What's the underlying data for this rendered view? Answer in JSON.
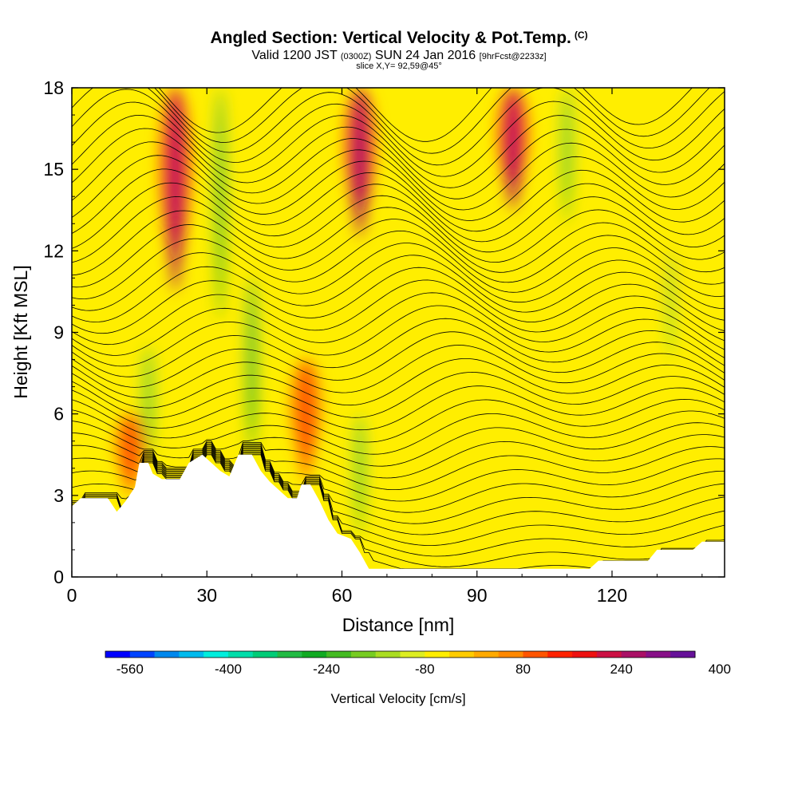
{
  "titles": {
    "main": "Angled Section: Vertical Velocity & Pot.Temp.",
    "main_suffix": "(C)",
    "valid_prefix": "Valid 1200 JST",
    "valid_zulu": "(0300Z)",
    "valid_date": "SUN 24 Jan 2016",
    "forecast": "[9hrFcst@2233z]",
    "slice": "slice X,Y= 92,59@45°"
  },
  "colorbar": {
    "label": "Vertical Velocity [cm/s]",
    "ticks": [
      "-560",
      "-400",
      "-240",
      "-80",
      "80",
      "240",
      "400"
    ],
    "colors": [
      "#0000ff",
      "#0044ff",
      "#0088ee",
      "#00bbee",
      "#00eedd",
      "#00ddaa",
      "#00cc77",
      "#22bb44",
      "#11aa22",
      "#44bb22",
      "#77cc22",
      "#aadd22",
      "#ddee22",
      "#ffee00",
      "#ffcc00",
      "#ffaa00",
      "#ff8800",
      "#ff5500",
      "#ff2200",
      "#ee1111",
      "#cc1144",
      "#aa1166",
      "#881188",
      "#661199"
    ]
  },
  "chart_data": {
    "type": "heatmap",
    "xlabel": "Distance [nm]",
    "ylabel": "Height [Kft MSL]",
    "xlim": [
      0,
      145
    ],
    "ylim": [
      0,
      18
    ],
    "x_ticks": [
      "0",
      "30",
      "60",
      "90",
      "120"
    ],
    "x_tick_values": [
      0,
      30,
      60,
      90,
      120
    ],
    "y_ticks": [
      "0",
      "3",
      "6",
      "9",
      "12",
      "15",
      "18"
    ],
    "y_tick_values": [
      0,
      3,
      6,
      9,
      12,
      15,
      18
    ],
    "terrain": [
      [
        0,
        2.6
      ],
      [
        2,
        2.9
      ],
      [
        8,
        2.9
      ],
      [
        10,
        2.4
      ],
      [
        12,
        2.8
      ],
      [
        14,
        3.3
      ],
      [
        15,
        4.2
      ],
      [
        17,
        4.2
      ],
      [
        18,
        3.8
      ],
      [
        20,
        3.6
      ],
      [
        24,
        3.6
      ],
      [
        26,
        4.2
      ],
      [
        29,
        4.5
      ],
      [
        31,
        4.2
      ],
      [
        33,
        3.9
      ],
      [
        35,
        3.7
      ],
      [
        37,
        4.5
      ],
      [
        40,
        4.5
      ],
      [
        42,
        3.9
      ],
      [
        44,
        3.5
      ],
      [
        46,
        3.2
      ],
      [
        48,
        2.9
      ],
      [
        50,
        2.9
      ],
      [
        51,
        3.4
      ],
      [
        53,
        3.4
      ],
      [
        55,
        2.8
      ],
      [
        57,
        2.1
      ],
      [
        59,
        1.6
      ],
      [
        62,
        1.4
      ],
      [
        64,
        0.9
      ],
      [
        66,
        0.3
      ],
      [
        115,
        0.3
      ],
      [
        117,
        0.6
      ],
      [
        128,
        0.6
      ],
      [
        130,
        1.0
      ],
      [
        138,
        1.0
      ],
      [
        140,
        1.3
      ],
      [
        145,
        1.3
      ]
    ],
    "updrafts": [
      {
        "x": 23,
        "top": 18,
        "bottom": 10.5,
        "peak": 250
      },
      {
        "x": 64,
        "top": 18,
        "bottom": 12.5,
        "peak": 270
      },
      {
        "x": 98,
        "top": 18,
        "bottom": 13.5,
        "peak": 240
      },
      {
        "x": 13,
        "top": 6,
        "bottom": 3,
        "peak": 110
      },
      {
        "x": 52,
        "top": 8,
        "bottom": 3.5,
        "peak": 110
      }
    ],
    "downdrafts": [
      {
        "x": 33,
        "top": 18,
        "bottom": 9.5,
        "peak": -210
      },
      {
        "x": 40,
        "top": 11,
        "bottom": 4.5,
        "peak": -220
      },
      {
        "x": 110,
        "top": 18,
        "bottom": 13,
        "peak": -170
      },
      {
        "x": 17,
        "top": 8.5,
        "bottom": 4.2,
        "peak": -170
      },
      {
        "x": 64,
        "top": 6,
        "bottom": 1.5,
        "peak": -180
      },
      {
        "x": 133,
        "top": 12,
        "bottom": 8,
        "peak": -140
      }
    ]
  }
}
